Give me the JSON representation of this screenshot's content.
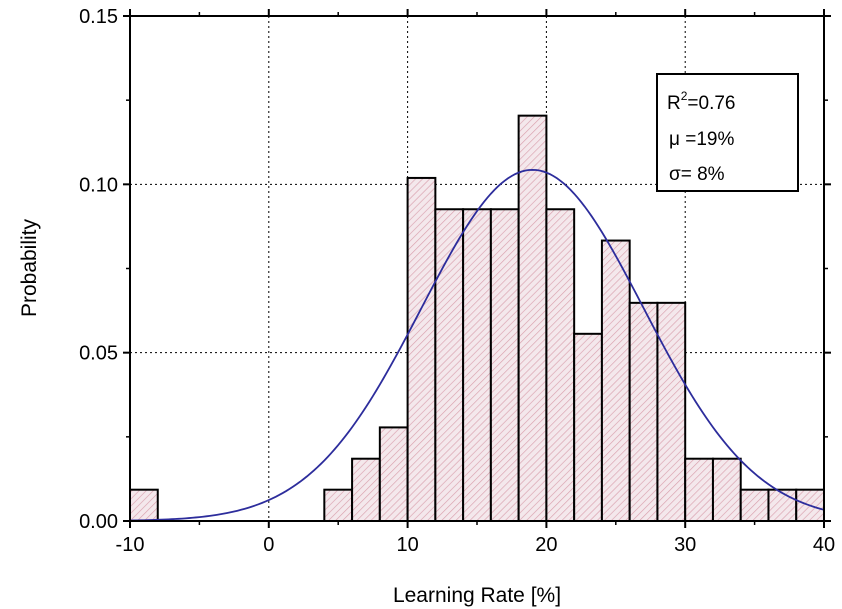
{
  "chart_data": {
    "type": "bar",
    "xlabel": "Learning Rate [%]",
    "ylabel": "Probability",
    "xlim": [
      -10,
      40
    ],
    "ylim": [
      0,
      0.15
    ],
    "x_ticks": [
      "-10",
      "0",
      "10",
      "20",
      "30",
      "40"
    ],
    "y_ticks": [
      "0.00",
      "0.05",
      "0.10",
      "0.15"
    ],
    "grid": "dotted",
    "bin_width": 2,
    "bins": [
      {
        "x": -9,
        "value": 0.0093
      },
      {
        "x": 5,
        "value": 0.0093
      },
      {
        "x": 7,
        "value": 0.0185
      },
      {
        "x": 9,
        "value": 0.0278
      },
      {
        "x": 11,
        "value": 0.1019
      },
      {
        "x": 13,
        "value": 0.0926
      },
      {
        "x": 15,
        "value": 0.0926
      },
      {
        "x": 17,
        "value": 0.0926
      },
      {
        "x": 19,
        "value": 0.1204
      },
      {
        "x": 21,
        "value": 0.0926
      },
      {
        "x": 23,
        "value": 0.0556
      },
      {
        "x": 25,
        "value": 0.0833
      },
      {
        "x": 27,
        "value": 0.0648
      },
      {
        "x": 29,
        "value": 0.0648
      },
      {
        "x": 31,
        "value": 0.0185
      },
      {
        "x": 33,
        "value": 0.0185
      },
      {
        "x": 35,
        "value": 0.0093
      },
      {
        "x": 37,
        "value": 0.0093
      },
      {
        "x": 39,
        "value": 0.0093
      }
    ],
    "bar_fill": "#f4e8ec",
    "bar_hatch": "#d9a0ad",
    "fit": {
      "type": "gaussian",
      "mu": 19,
      "sigma": 8,
      "amplitude": 0.1043,
      "color": "#2d2d9c"
    },
    "stats_box": {
      "position": "top-right",
      "r2_prefix": "R",
      "r2_sup": "2",
      "r2_value": "=0.76",
      "mu": "μ =19%",
      "sigma": "σ= 8%"
    }
  }
}
